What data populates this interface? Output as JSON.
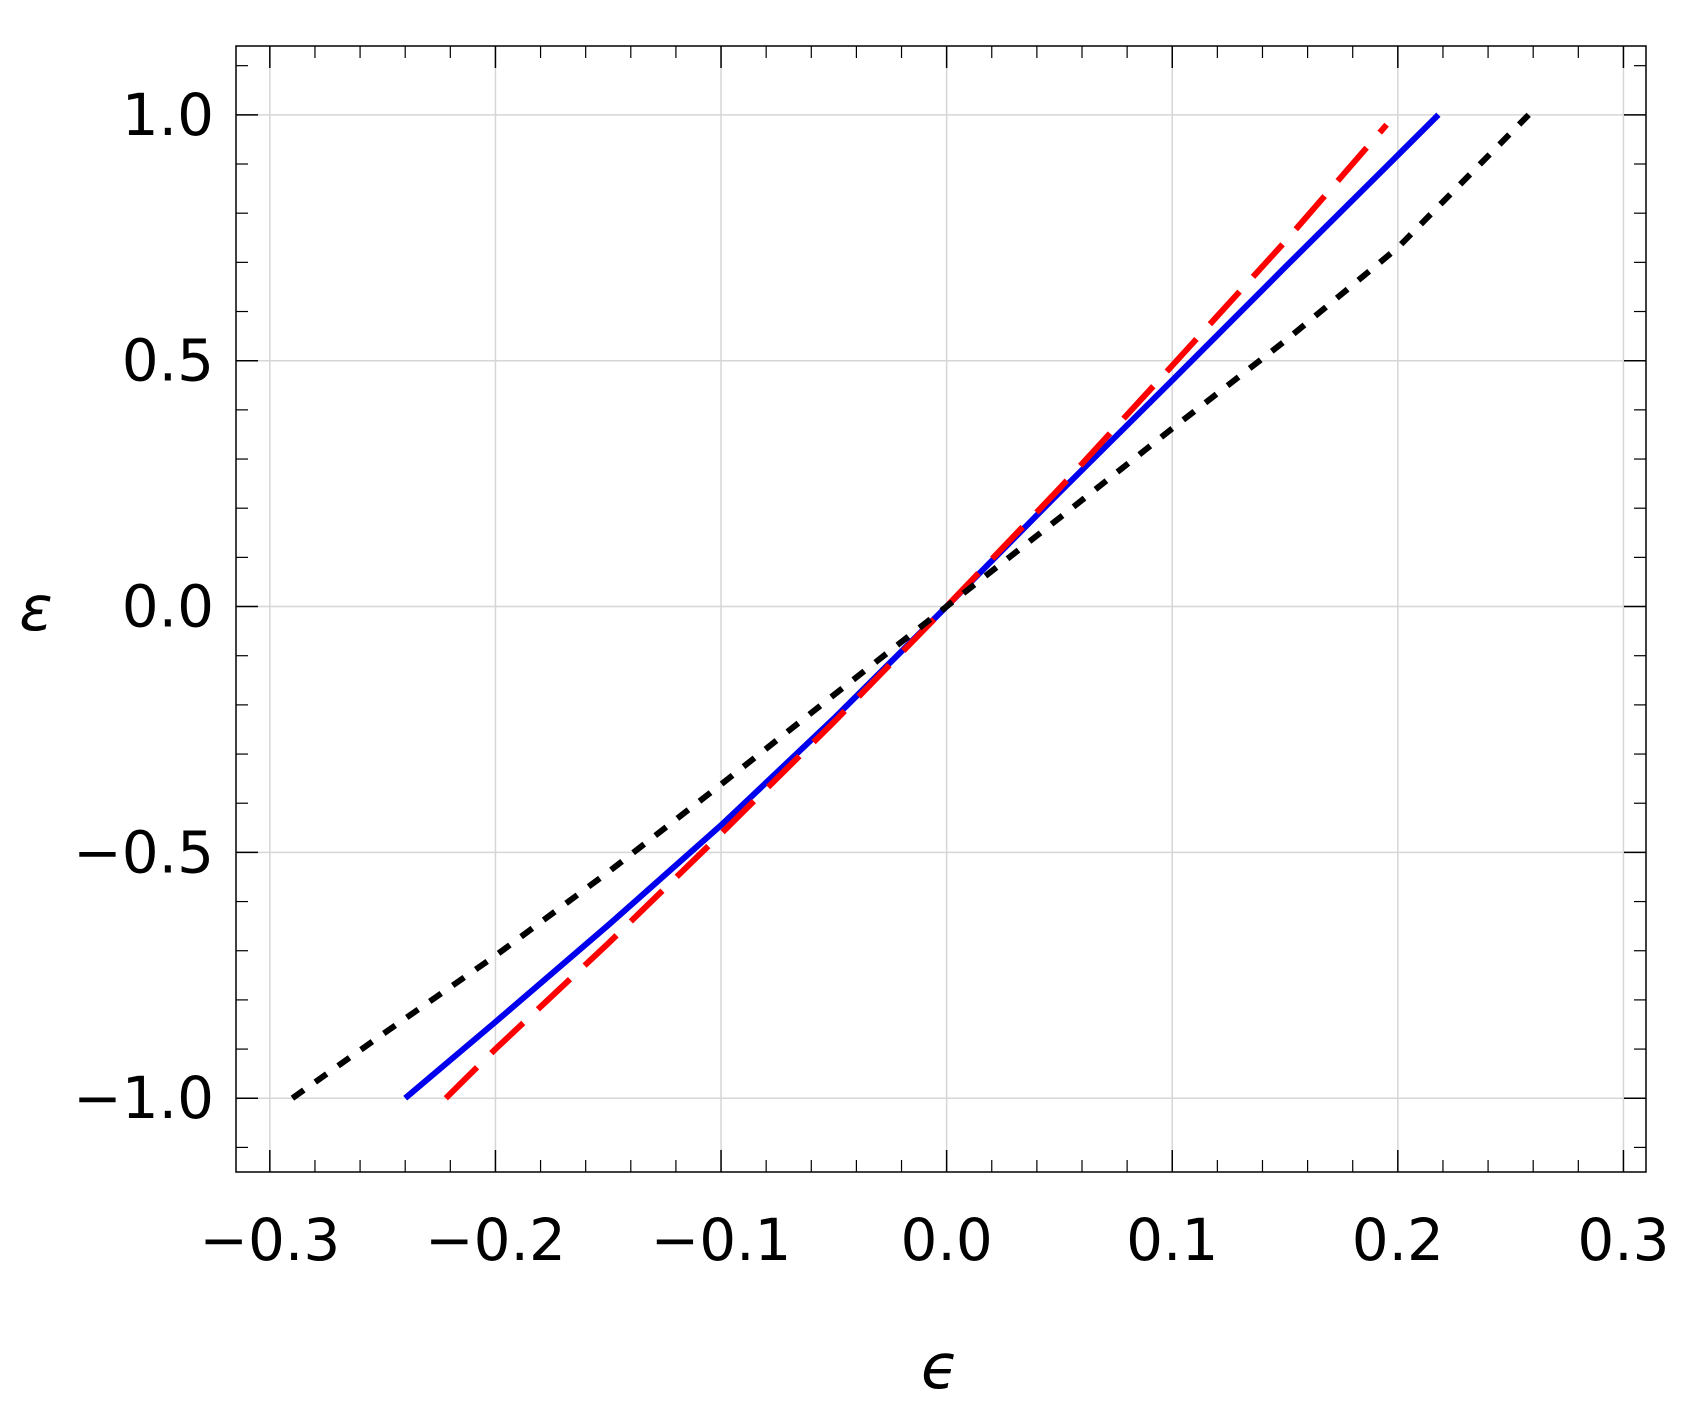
{
  "chart_data": {
    "type": "line",
    "title": "",
    "xlabel": "ϵ",
    "ylabel": "ε",
    "xlim": [
      -0.315,
      0.31
    ],
    "ylim": [
      -1.15,
      1.14
    ],
    "xticks": [
      -0.3,
      -0.2,
      -0.1,
      0.0,
      0.1,
      0.2,
      0.3
    ],
    "xtick_labels": [
      "−0.3",
      "−0.2",
      "−0.1",
      "0.0",
      "0.1",
      "0.2",
      "0.3"
    ],
    "xminor_step": 0.02,
    "yticks": [
      -1.0,
      -0.5,
      0.0,
      0.5,
      1.0
    ],
    "ytick_labels": [
      "−1.0",
      "−0.5",
      "0.0",
      "0.5",
      "1.0"
    ],
    "yminor_step": 0.1,
    "grid": true,
    "legend": "none",
    "series": [
      {
        "style": "solid",
        "color": "#0000ee",
        "x": [
          -0.24,
          -0.2,
          -0.15,
          -0.1,
          -0.05,
          0.0,
          0.05,
          0.1,
          0.15,
          0.2,
          0.218
        ],
        "y": [
          -1.0,
          -0.845,
          -0.648,
          -0.445,
          -0.228,
          0.0,
          0.232,
          0.46,
          0.69,
          0.918,
          1.0
        ]
      },
      {
        "style": "dashed",
        "color": "#ff0000",
        "x": [
          -0.222,
          -0.2,
          -0.15,
          -0.1,
          -0.05,
          0.0,
          0.05,
          0.1,
          0.15,
          0.195
        ],
        "y": [
          -1.0,
          -0.9,
          -0.685,
          -0.462,
          -0.235,
          0.0,
          0.24,
          0.49,
          0.742,
          0.98
        ]
      },
      {
        "style": "dotted",
        "color": "#000000",
        "x": [
          -0.29,
          -0.25,
          -0.2,
          -0.15,
          -0.1,
          -0.05,
          0.0,
          0.05,
          0.1,
          0.15,
          0.2,
          0.258
        ],
        "y": [
          -1.0,
          -0.87,
          -0.71,
          -0.54,
          -0.362,
          -0.18,
          0.0,
          0.18,
          0.362,
          0.54,
          0.73,
          1.0
        ]
      }
    ]
  },
  "colors": {
    "frame": "#000000",
    "grid": "#d6d6d6"
  }
}
